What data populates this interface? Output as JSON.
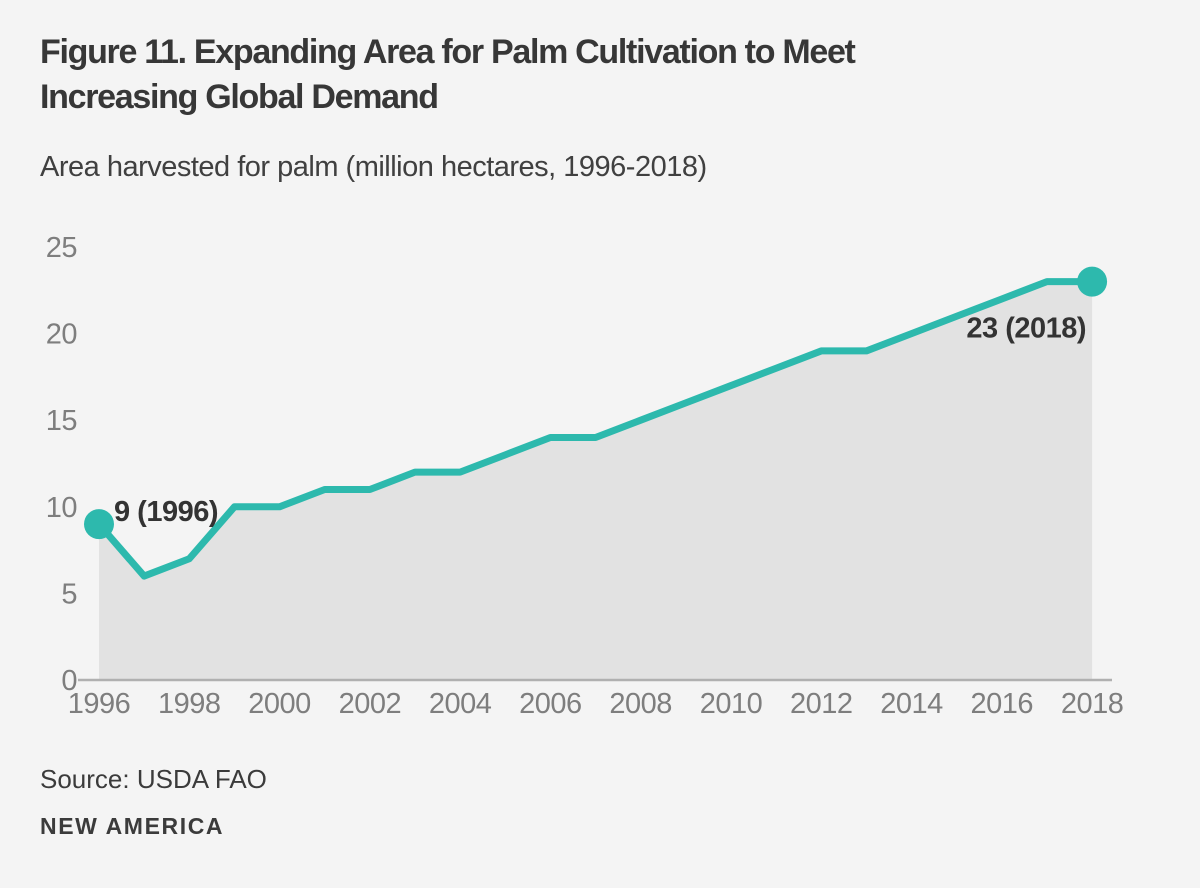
{
  "figure": {
    "title_line1": "Figure 11. Expanding Area for Palm Cultivation to Meet",
    "title_line2": "Increasing Global Demand",
    "subtitle": "Area harvested for palm (million hectares, 1996-2018)",
    "source_label": "Source:",
    "source_value": "USDA FAO",
    "brand": "NEW AMERICA"
  },
  "colors": {
    "background": "#f4f4f4",
    "line": "#2db9ad",
    "area_fill": "#e2e2e2",
    "axis": "#b0b0b0",
    "tick_text": "#7e7e7e",
    "title_text": "#373737",
    "annotation_text": "#333333"
  },
  "chart_data": {
    "type": "area",
    "title": "Figure 11. Expanding Area for Palm Cultivation to Meet Increasing Global Demand",
    "subtitle": "Area harvested for palm (million hectares, 1996-2018)",
    "x": [
      1996,
      1997,
      1998,
      1999,
      2000,
      2001,
      2002,
      2003,
      2004,
      2005,
      2006,
      2007,
      2008,
      2009,
      2010,
      2011,
      2012,
      2013,
      2014,
      2015,
      2016,
      2017,
      2018
    ],
    "values": [
      9,
      6,
      7,
      10,
      10,
      11,
      11,
      12,
      12,
      13,
      14,
      14,
      15,
      16,
      17,
      18,
      19,
      19,
      20,
      21,
      22,
      23,
      23
    ],
    "series_name": "Area harvested for palm",
    "unit": "million hectares",
    "xlabel": "",
    "ylabel": "",
    "ylim": [
      0,
      25
    ],
    "y_ticks": [
      0,
      5,
      10,
      15,
      20,
      25
    ],
    "x_ticks": [
      1996,
      1998,
      2000,
      2002,
      2004,
      2006,
      2008,
      2010,
      2012,
      2014,
      2016,
      2018
    ],
    "grid": false,
    "legend": "none",
    "markers": [
      {
        "x": 1996,
        "y": 9
      },
      {
        "x": 2018,
        "y": 23
      }
    ],
    "annotations": [
      {
        "text": "9 (1996)",
        "x": 1996,
        "y": 9,
        "position": "right"
      },
      {
        "text": "23 (2018)",
        "x": 2018,
        "y": 23,
        "position": "below-left"
      }
    ]
  }
}
